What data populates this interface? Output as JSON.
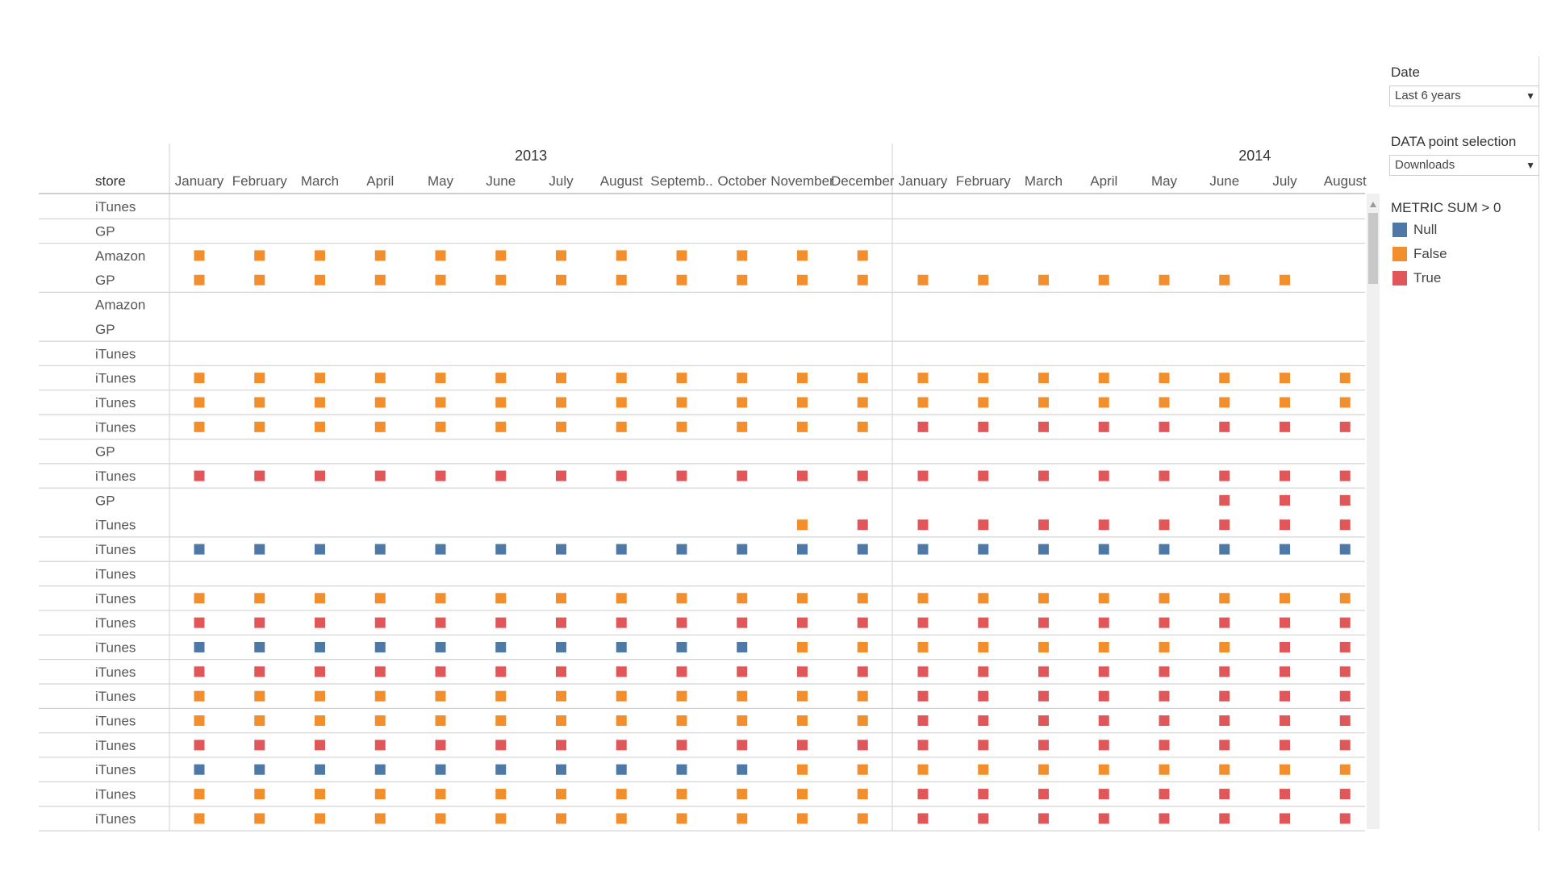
{
  "colors": {
    "Null": "#4E79A7",
    "False": "#F28E2B",
    "True": "#E15759"
  },
  "chart_data": {
    "type": "table",
    "row_header": "store",
    "years": [
      {
        "label": "2013",
        "months": [
          "January",
          "February",
          "March",
          "April",
          "May",
          "June",
          "July",
          "August",
          "Septemb..",
          "October",
          "November",
          "December"
        ]
      },
      {
        "label": "2014",
        "months": [
          "January",
          "February",
          "March",
          "April",
          "May",
          "June",
          "July",
          "August"
        ]
      }
    ],
    "legend_title": "METRIC SUM > 0",
    "legend": [
      "Null",
      "False",
      "True"
    ],
    "stores": [
      "iTunes",
      "GP",
      "Amazon",
      "GP",
      "Amazon",
      "GP",
      "iTunes",
      "iTunes",
      "iTunes",
      "iTunes",
      "GP",
      "iTunes",
      "GP",
      "iTunes",
      "iTunes",
      "iTunes",
      "iTunes",
      "iTunes",
      "iTunes",
      "iTunes",
      "iTunes",
      "iTunes",
      "iTunes",
      "iTunes",
      "iTunes",
      "iTunes"
    ],
    "rows": [
      "....................",
      "....................",
      "FFFFFFFFFFFF........",
      "FFFFFFFFFFFFFFFFFFF.",
      "....................",
      "....................",
      "....................",
      "FFFFFFFFFFFFFFFFFFFF",
      "FFFFFFFFFFFFFFFFFFFF",
      "FFFFFFFFFFFFTTTTTTTT",
      "....................",
      "TTTTTTTTTTTTTTTTTTTT",
      ".................TTT",
      "..........FTTTTTTTTT",
      "NNNNNNNNNNNNNNNNNNNN",
      "....................",
      "FFFFFFFFFFFFFFFFFFFF",
      "TTTTTTTTTTTTTTTTTTTT",
      "NNNNNNNNNNFFFFFFFFTT",
      "TTTTTTTTTTTTTTTTTTTT",
      "FFFFFFFFFFFFTTTTTTTT",
      "FFFFFFFFFFFFTTTTTTTT",
      "TTTTTTTTTTTTTTTTTTTT",
      "NNNNNNNNNNFFFFFFFFFF",
      "FFFFFFFFFFFFTTTTTTTT",
      "FFFFFFFFFFFFTTTTTTTT"
    ],
    "code_map": {
      "N": "Null",
      "F": "False",
      "T": "True",
      ".": ""
    }
  },
  "filters": {
    "date_title": "Date",
    "date_value": "Last 6 years",
    "selection_title": "DATA point selection",
    "selection_value": "Downloads"
  }
}
